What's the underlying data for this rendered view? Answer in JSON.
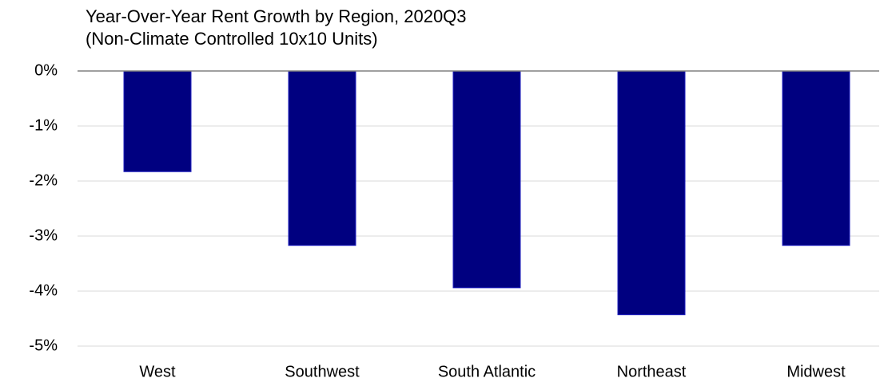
{
  "chart_data": {
    "type": "bar",
    "title": "Year-Over-Year Rent Growth by Region, 2020Q3",
    "subtitle": "(Non-Climate Controlled 10x10 Units)",
    "categories": [
      "West",
      "Southwest",
      "South Atlantic",
      "Northeast",
      "Midwest"
    ],
    "values": [
      -1.83,
      -3.17,
      -3.94,
      -4.43,
      -3.17
    ],
    "color": "#000080",
    "ylim": [
      -5,
      0
    ],
    "yticks": [
      {
        "value": 0,
        "label": "0%"
      },
      {
        "value": -1,
        "label": "-1%"
      },
      {
        "value": -2,
        "label": "-2%"
      },
      {
        "value": -3,
        "label": "-3%"
      },
      {
        "value": -4,
        "label": "-4%"
      },
      {
        "value": -5,
        "label": "-5%"
      }
    ],
    "grid": true
  }
}
